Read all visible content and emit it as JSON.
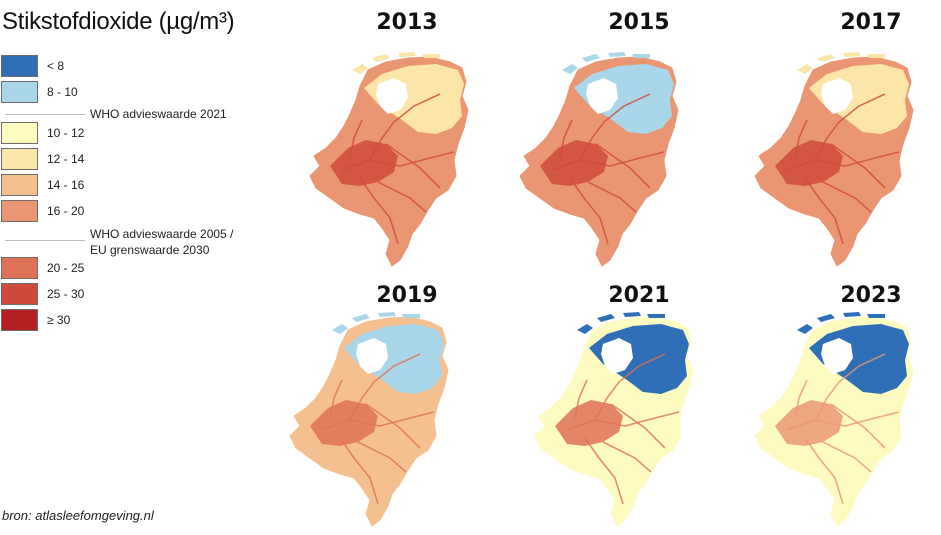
{
  "title": "Stikstofdioxide (µg/m³)",
  "legend": {
    "items": [
      {
        "label": "< 8",
        "color": "#2e6fb8"
      },
      {
        "label": "8 - 10",
        "color": "#a9d6e8"
      },
      {
        "label": "10 - 12",
        "color": "#fefbc0"
      },
      {
        "label": "12 - 14",
        "color": "#fbe5a8"
      },
      {
        "label": "14 - 16",
        "color": "#f5c08f"
      },
      {
        "label": "16 - 20",
        "color": "#eb9673"
      },
      {
        "label": "20 - 25",
        "color": "#df7156"
      },
      {
        "label": "25 - 30",
        "color": "#cf4a3c"
      },
      {
        "label": "≥ 30",
        "color": "#b51f22"
      }
    ],
    "threshold_2021": "WHO advieswaarde 2021",
    "threshold_2005_line1": "WHO advieswaarde 2005 /",
    "threshold_2005_line2": "EU grenswaarde 2030"
  },
  "maps": [
    {
      "year": "2013",
      "north": "#fbe5a8",
      "base": "#eb9673",
      "core": "#cf4a3c"
    },
    {
      "year": "2015",
      "north": "#a9d6e8",
      "base": "#eb9673",
      "core": "#cf4a3c"
    },
    {
      "year": "2017",
      "north": "#fbe5a8",
      "base": "#eb9673",
      "core": "#cf4a3c"
    },
    {
      "year": "2019",
      "north": "#a9d6e8",
      "base": "#f5c08f",
      "core": "#df7156"
    },
    {
      "year": "2021",
      "north": "#2e6fb8",
      "base": "#fefbc0",
      "core": "#df7156"
    },
    {
      "year": "2023",
      "north": "#2e6fb8",
      "base": "#fefbc0",
      "core": "#eb9673"
    }
  ],
  "source": "bron: atlasleefomgeving.nl"
}
